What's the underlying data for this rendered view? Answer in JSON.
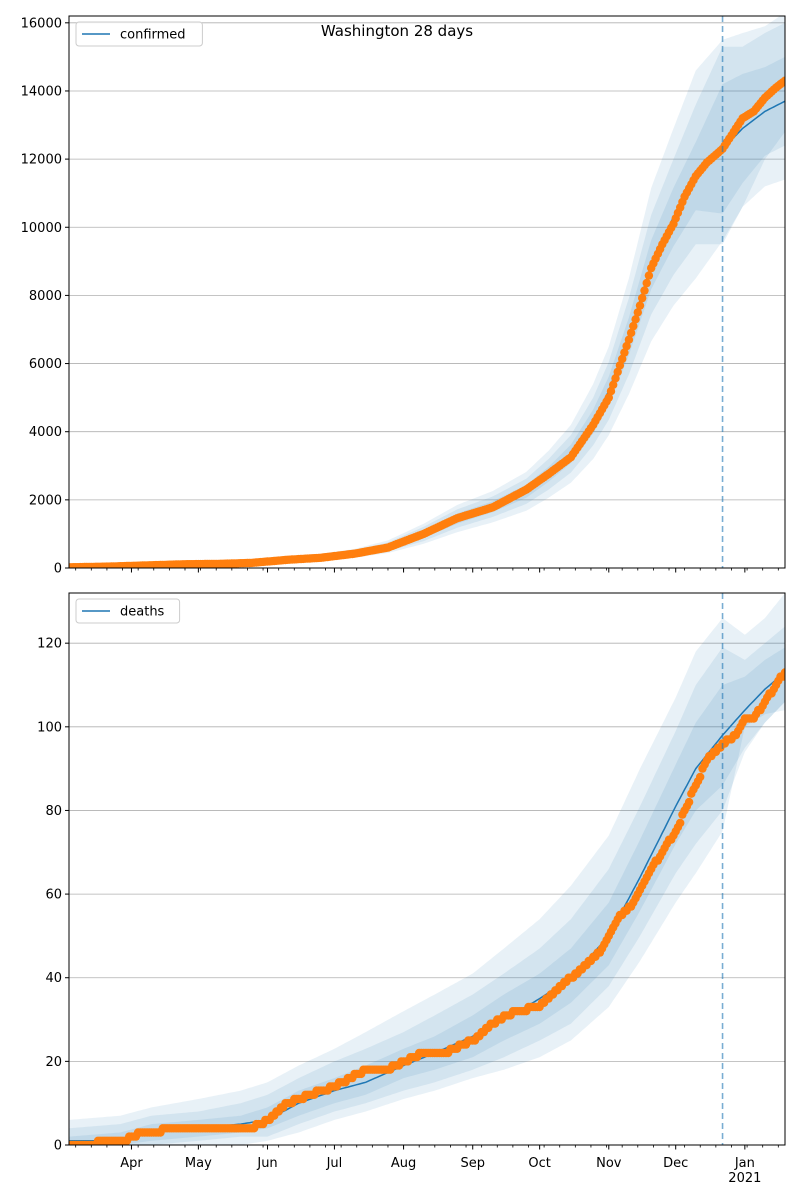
{
  "colors": {
    "line": "#1f77b4",
    "band": "#1f77b4",
    "points": "#ff7f0e",
    "grid": "#b0b0b0",
    "vline": "#1f77b4"
  },
  "chart_data": [
    {
      "type": "line",
      "title": "Washington 28 days",
      "legend": {
        "entries": [
          "confirmed"
        ],
        "placement": "top-left"
      },
      "x_range": [
        "2020-03-04",
        "2021-01-19"
      ],
      "ylim": [
        0,
        16200
      ],
      "yticks": [
        0,
        2000,
        4000,
        6000,
        8000,
        10000,
        12000,
        14000,
        16000
      ],
      "xtick_labels": [],
      "grid": "horizontal",
      "forecast_start": "2020-12-22",
      "model": {
        "name": "confirmed",
        "x": [
          "2020-03-04",
          "2020-03-21",
          "2020-04-10",
          "2020-04-25",
          "2020-05-10",
          "2020-05-25",
          "2020-06-10",
          "2020-06-25",
          "2020-07-10",
          "2020-07-25",
          "2020-08-10",
          "2020-08-25",
          "2020-09-10",
          "2020-09-25",
          "2020-10-05",
          "2020-10-15",
          "2020-10-25",
          "2020-11-01",
          "2020-11-10",
          "2020-11-20",
          "2020-11-30",
          "2020-12-10",
          "2020-12-22",
          "2020-12-31",
          "2021-01-10",
          "2021-01-19"
        ],
        "y": [
          10,
          40,
          80,
          110,
          120,
          140,
          240,
          310,
          430,
          620,
          1000,
          1450,
          1800,
          2250,
          2750,
          3350,
          4300,
          5200,
          6800,
          8900,
          10300,
          11500,
          12300,
          12900,
          13400,
          13700
        ],
        "bands": [
          {
            "lower": [
              0,
              20,
              55,
              80,
              90,
              110,
              200,
              265,
              375,
              545,
              880,
              1300,
              1640,
              2060,
              2530,
              3080,
              3950,
              4780,
              6250,
              8180,
              9440,
              10500,
              10400,
              11300,
              12100,
              12400
            ],
            "upper": [
              20,
              60,
              105,
              140,
              150,
              170,
              280,
              355,
              485,
              695,
              1120,
              1600,
              1960,
              2440,
              2970,
              3620,
              4650,
              5620,
              7350,
              9620,
              11160,
              12500,
              14200,
              14500,
              14700,
              15000
            ]
          },
          {
            "lower": [
              0,
              10,
              40,
              65,
              75,
              90,
              170,
              230,
              340,
              490,
              790,
              1180,
              1500,
              1880,
              2300,
              2800,
              3600,
              4350,
              5680,
              7440,
              8600,
              9500,
              9500,
              10600,
              11200,
              11400
            ],
            "upper": [
              30,
              75,
              125,
              160,
              170,
              190,
              310,
              390,
              520,
              750,
              1210,
              1720,
              2100,
              2620,
              3200,
              3900,
              5000,
              6050,
              7920,
              10360,
              12000,
              13600,
              15300,
              15300,
              15700,
              16000
            ]
          },
          {
            "lower": [
              0,
              5,
              30,
              55,
              60,
              75,
              150,
              200,
              300,
              440,
              710,
              1050,
              1340,
              1680,
              2060,
              2500,
              3200,
              3900,
              5100,
              6650,
              7700,
              8500,
              9600,
              10600,
              12000,
              12800
            ],
            "upper": [
              45,
              95,
              145,
              180,
              190,
              210,
              340,
              420,
              560,
              810,
              1300,
              1850,
              2260,
              2820,
              3440,
              4200,
              5400,
              6500,
              8500,
              11150,
              12900,
              14600,
              15500,
              15700,
              15900,
              16300
            ]
          }
        ]
      },
      "observed": {
        "x": [
          "2020-03-04",
          "2020-03-21",
          "2020-04-10",
          "2020-04-25",
          "2020-05-10",
          "2020-05-25",
          "2020-06-10",
          "2020-06-25",
          "2020-07-10",
          "2020-07-25",
          "2020-08-10",
          "2020-08-25",
          "2020-09-10",
          "2020-09-25",
          "2020-10-05",
          "2020-10-15",
          "2020-10-25",
          "2020-11-01",
          "2020-11-10",
          "2020-11-15",
          "2020-11-20",
          "2020-11-25",
          "2020-11-30",
          "2020-12-05",
          "2020-12-10",
          "2020-12-15",
          "2020-12-22",
          "2020-12-26",
          "2020-12-31",
          "2021-01-05",
          "2021-01-10",
          "2021-01-15",
          "2021-01-19"
        ],
        "y": [
          20,
          40,
          80,
          110,
          120,
          150,
          240,
          300,
          420,
          600,
          1000,
          1460,
          1780,
          2300,
          2760,
          3250,
          4200,
          5000,
          6700,
          7700,
          8800,
          9500,
          10100,
          10900,
          11500,
          11900,
          12300,
          12700,
          13200,
          13400,
          13800,
          14100,
          14300
        ]
      }
    },
    {
      "type": "line",
      "title": "",
      "legend": {
        "entries": [
          "deaths"
        ],
        "placement": "top-left"
      },
      "x_range": [
        "2020-03-04",
        "2021-01-19"
      ],
      "ylim": [
        0,
        132
      ],
      "yticks": [
        0,
        20,
        40,
        60,
        80,
        100,
        120
      ],
      "xtick_labels": [
        "Apr",
        "May",
        "Jun",
        "Jul",
        "Aug",
        "Sep",
        "Oct",
        "Nov",
        "Dec",
        "Jan\n2021"
      ],
      "xticks": [
        "2020-04-01",
        "2020-05-01",
        "2020-06-01",
        "2020-07-01",
        "2020-08-01",
        "2020-09-01",
        "2020-10-01",
        "2020-11-01",
        "2020-12-01",
        "2021-01-01"
      ],
      "grid": "horizontal",
      "forecast_start": "2020-12-22",
      "model": {
        "name": "deaths",
        "x": [
          "2020-03-04",
          "2020-03-27",
          "2020-04-10",
          "2020-05-01",
          "2020-05-20",
          "2020-06-01",
          "2020-06-15",
          "2020-07-01",
          "2020-07-15",
          "2020-08-01",
          "2020-08-15",
          "2020-09-01",
          "2020-09-15",
          "2020-10-01",
          "2020-10-15",
          "2020-11-01",
          "2020-11-15",
          "2020-12-01",
          "2020-12-10",
          "2020-12-22",
          "2021-01-01",
          "2021-01-10",
          "2021-01-19"
        ],
        "y": [
          1,
          1,
          3,
          4,
          5,
          6,
          10,
          13,
          15,
          19,
          22,
          26,
          30,
          35,
          40,
          50,
          64,
          81,
          90,
          98,
          104,
          109,
          113
        ],
        "bands": [
          {
            "lower": [
              0,
              0,
              1,
              2,
              3,
              4,
              7,
              10,
              12,
              16,
              18,
              21,
              25,
              29,
              34,
              43,
              56,
              72,
              80,
              86,
              95,
              101,
              106
            ],
            "upper": [
              2,
              3,
              5,
              6,
              7,
              9,
              13,
              16,
              19,
              23,
              26,
              31,
              36,
              41,
              47,
              58,
              73,
              91,
              101,
              110,
              112,
              116,
              119
            ]
          },
          {
            "lower": [
              0,
              0,
              0,
              1,
              2,
              2,
              5,
              8,
              10,
              13,
              15,
              18,
              21,
              25,
              29,
              38,
              50,
              65,
              72,
              80,
              94,
              101,
              106
            ],
            "upper": [
              4,
              5,
              7,
              8,
              10,
              12,
              16,
              20,
              23,
              27,
              31,
              36,
              41,
              47,
              54,
              66,
              81,
              99,
              110,
              119,
              116,
              120,
              124
            ]
          },
          {
            "lower": [
              0,
              0,
              0,
              0,
              0,
              1,
              3,
              6,
              8,
              11,
              13,
              16,
              18,
              21,
              25,
              33,
              44,
              58,
              65,
              75,
              100,
              103,
              104
            ],
            "upper": [
              6,
              7,
              9,
              11,
              13,
              15,
              19,
              23,
              27,
              32,
              36,
              41,
              47,
              54,
              62,
              74,
              90,
              107,
              118,
              126,
              122,
              126,
              132
            ]
          }
        ]
      },
      "observed": {
        "x": [
          "2020-03-04",
          "2020-03-29",
          "2020-04-05",
          "2020-04-25",
          "2020-05-25",
          "2020-06-01",
          "2020-06-10",
          "2020-06-20",
          "2020-07-01",
          "2020-07-15",
          "2020-07-25",
          "2020-08-01",
          "2020-08-10",
          "2020-08-20",
          "2020-09-01",
          "2020-09-10",
          "2020-09-20",
          "2020-10-01",
          "2020-10-10",
          "2020-10-20",
          "2020-10-28",
          "2020-11-05",
          "2020-11-12",
          "2020-11-20",
          "2020-11-25",
          "2020-12-01",
          "2020-12-10",
          "2020-12-15",
          "2020-12-22",
          "2020-12-28",
          "2021-01-01",
          "2021-01-05",
          "2021-01-10",
          "2021-01-15",
          "2021-01-19"
        ],
        "y": [
          0,
          1,
          3,
          4,
          4,
          6,
          10,
          12,
          14,
          18,
          18,
          20,
          22,
          22,
          25,
          29,
          32,
          33,
          38,
          42,
          46,
          54,
          58,
          66,
          70,
          75,
          86,
          92,
          96,
          98,
          102,
          102,
          106,
          110,
          113
        ]
      }
    }
  ]
}
